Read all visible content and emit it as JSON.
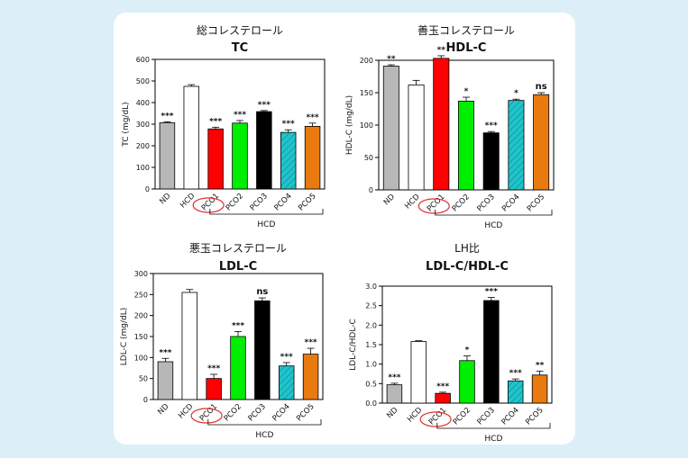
{
  "chart_data": [
    {
      "type": "bar",
      "title_jp": "総コレステロール",
      "title": "TC",
      "ylabel": "TC (mg/dL)",
      "ylim": [
        0,
        600
      ],
      "yticks": [
        "0",
        "100",
        "200",
        "300",
        "400",
        "500",
        "600"
      ],
      "categories": [
        "ND",
        "HCD",
        "PCO1",
        "PCO2",
        "PCO3",
        "PCO4",
        "PCO5"
      ],
      "values": [
        307,
        475,
        278,
        305,
        358,
        262,
        290
      ],
      "errors": [
        4,
        8,
        8,
        12,
        5,
        12,
        15
      ],
      "significance": [
        "***",
        "",
        "***",
        "***",
        "***",
        "***",
        "***"
      ],
      "group_label": "HCD"
    },
    {
      "type": "bar",
      "title_jp": "善玉コレステロール",
      "title": "HDL-C",
      "ylabel": "HDL-C (mg/dL)",
      "ylim": [
        0,
        200
      ],
      "yticks": [
        "0",
        "50",
        "100",
        "150",
        "200"
      ],
      "categories": [
        "ND",
        "HCD",
        "PCO1",
        "PCO2",
        "PCO3",
        "PCO4",
        "PCO5"
      ],
      "values": [
        191,
        162,
        203,
        137,
        88,
        138,
        147
      ],
      "errors": [
        2,
        7,
        4,
        6,
        2,
        2,
        3
      ],
      "significance": [
        "**",
        "",
        "**",
        "*",
        "***",
        "*",
        "ns"
      ],
      "group_label": "HCD"
    },
    {
      "type": "bar",
      "title_jp": "悪玉コレステロール",
      "title": "LDL-C",
      "ylabel": "LDL-C (mg/dL)",
      "ylim": [
        0,
        300
      ],
      "yticks": [
        "0",
        "50",
        "100",
        "150",
        "200",
        "250",
        "300"
      ],
      "categories": [
        "ND",
        "HCD",
        "PCO1",
        "PCO2",
        "PCO3",
        "PCO4",
        "PCO5"
      ],
      "values": [
        90,
        255,
        50,
        150,
        235,
        80,
        108
      ],
      "errors": [
        8,
        7,
        10,
        12,
        7,
        8,
        14
      ],
      "significance": [
        "***",
        "",
        "***",
        "***",
        "ns",
        "***",
        "***"
      ],
      "group_label": "HCD"
    },
    {
      "type": "bar",
      "title_jp": "LH比",
      "title": "LDL-C/HDL-C",
      "ylabel": "LDL-C/HDL-C",
      "ylim": [
        0,
        3.0
      ],
      "yticks": [
        "0.0",
        "0.5",
        "1.0",
        "1.5",
        "2.0",
        "2.5",
        "3.0"
      ],
      "categories": [
        "ND",
        "HCD",
        "PCO1",
        "PCO2",
        "PCO3",
        "PCO4",
        "PCO5"
      ],
      "values": [
        0.47,
        1.58,
        0.25,
        1.09,
        2.63,
        0.57,
        0.72
      ],
      "errors": [
        0.04,
        0.02,
        0.03,
        0.12,
        0.08,
        0.05,
        0.1
      ],
      "significance": [
        "***",
        "",
        "***",
        "*",
        "***",
        "***",
        "**"
      ],
      "group_label": "HCD"
    }
  ],
  "bar_colors": [
    "#b7b7b7",
    "#ffffff",
    "#ff0000",
    "#00ee00",
    "#000000",
    "#20c4cc",
    "#e87a10"
  ]
}
